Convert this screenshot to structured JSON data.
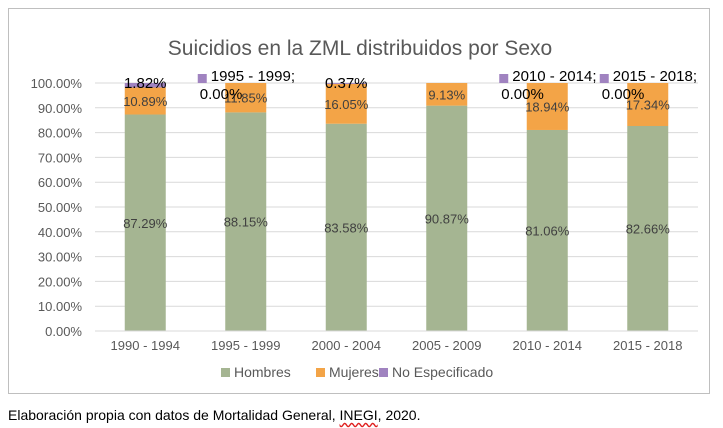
{
  "chart_data": {
    "type": "bar",
    "stacked": true,
    "title": "Suicidios en la ZML distribuidos por Sexo",
    "xlabel": "",
    "ylabel": "",
    "ylim": [
      0,
      100
    ],
    "ytick_step": 10,
    "ytick_labels": [
      "0.00%",
      "10.00%",
      "20.00%",
      "30.00%",
      "40.00%",
      "50.00%",
      "60.00%",
      "70.00%",
      "80.00%",
      "90.00%",
      "100.00%"
    ],
    "categories": [
      "1990 - 1994",
      "1995 - 1999",
      "2000 - 2004",
      "2005 - 2009",
      "2010 - 2014",
      "2015 - 2018"
    ],
    "grid": true,
    "legend_position": "bottom",
    "series": [
      {
        "name": "Hombres",
        "color": "#a5b592",
        "values": [
          87.29,
          88.15,
          83.58,
          90.87,
          81.06,
          82.66
        ],
        "labels": [
          "87.29%",
          "88.15%",
          "83.58%",
          "90.87%",
          "81.06%",
          "82.66%"
        ]
      },
      {
        "name": "Mujeres",
        "color": "#f3a447",
        "values": [
          10.89,
          11.85,
          16.05,
          9.13,
          18.94,
          17.34
        ],
        "labels": [
          "10.89%",
          "11.85%",
          "16.05%",
          "9.13%",
          "18.94%",
          "17.34%"
        ]
      },
      {
        "name": "No Especificado",
        "color": "#a083c0",
        "values": [
          1.82,
          0.0,
          0.37,
          0.0,
          0.0,
          0.0
        ],
        "labels": [
          "1.82%",
          "1995 - 1999; 0.00%",
          "0.37%",
          "",
          "2010 - 2014; 0.00%",
          "2015 - 2018; 0.00%"
        ]
      }
    ]
  },
  "caption": {
    "before": "Elaboración propia con datos de Mortalidad General, ",
    "source": "INEGI",
    "after": ", 2020."
  }
}
